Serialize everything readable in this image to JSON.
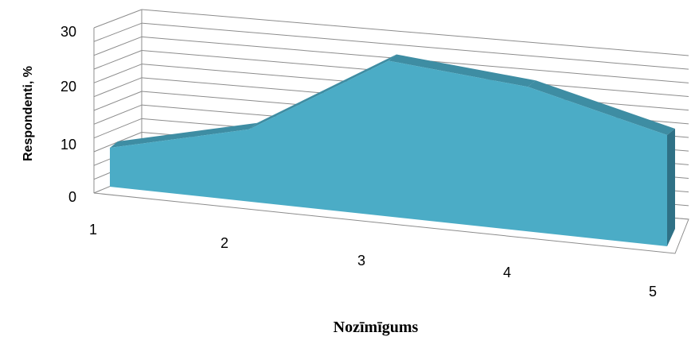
{
  "chart_data": {
    "type": "area",
    "categories": [
      "1",
      "2",
      "3",
      "4",
      "5"
    ],
    "values": [
      7,
      13,
      28,
      26,
      20
    ],
    "xlabel": "Nozīmīgums",
    "ylabel": "Respondenti, %",
    "ylim": [
      0,
      30
    ],
    "yticks": [
      "0",
      "10",
      "20",
      "30"
    ],
    "grid": true,
    "three_d": true,
    "colors": {
      "area_front": "#4BACC6",
      "area_top": "#3E8DA3",
      "area_side": "#2F7186",
      "grid": "#8C8C8C"
    }
  }
}
